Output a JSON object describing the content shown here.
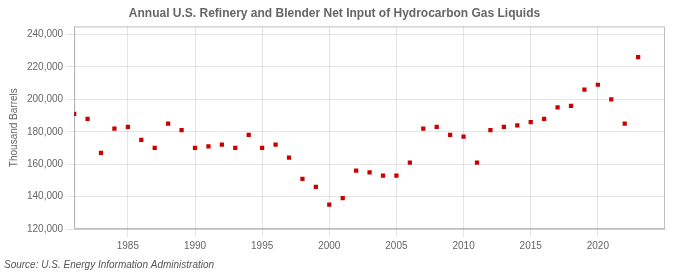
{
  "chart_data": {
    "type": "scatter",
    "title": "Annual U.S. Refinery and Blender Net Input of Hydrocarbon Gas Liquids",
    "ylabel": "Thousand Barrels",
    "annotations": [
      "Source: U.S. Energy Information Administration"
    ],
    "x": [
      1981,
      1982,
      1983,
      1984,
      1985,
      1986,
      1987,
      1988,
      1989,
      1990,
      1991,
      1992,
      1993,
      1994,
      1995,
      1996,
      1997,
      1998,
      1999,
      2000,
      2001,
      2002,
      2003,
      2004,
      2005,
      2006,
      2007,
      2008,
      2009,
      2010,
      2011,
      2012,
      2013,
      2014,
      2015,
      2016,
      2017,
      2018,
      2019,
      2020,
      2021,
      2022,
      2023
    ],
    "values": [
      191000,
      188000,
      167000,
      182000,
      183000,
      175000,
      170000,
      185000,
      181000,
      170000,
      171000,
      172000,
      170000,
      178000,
      170000,
      172000,
      164000,
      151000,
      146000,
      135000,
      139000,
      156000,
      155000,
      153000,
      153000,
      161000,
      182000,
      183000,
      178000,
      177000,
      161000,
      181000,
      183000,
      184000,
      186000,
      188000,
      195000,
      196000,
      206000,
      209000,
      200000,
      185000,
      226000
    ],
    "color": "#cc0000",
    "marker": "square",
    "xlim": [
      1981,
      2025
    ],
    "ylim": [
      120000,
      245000
    ],
    "xticks": [
      1985,
      1990,
      1995,
      2000,
      2005,
      2010,
      2015,
      2020
    ],
    "yticks": [
      {
        "value": 120000,
        "label": "120,000"
      },
      {
        "value": 140000,
        "label": "140,000"
      },
      {
        "value": 160000,
        "label": "160,000"
      },
      {
        "value": 180000,
        "label": "180,000"
      },
      {
        "value": 200000,
        "label": "200,000"
      },
      {
        "value": 220000,
        "label": "220,000"
      },
      {
        "value": 240000,
        "label": "240,000"
      }
    ],
    "grid": true
  }
}
